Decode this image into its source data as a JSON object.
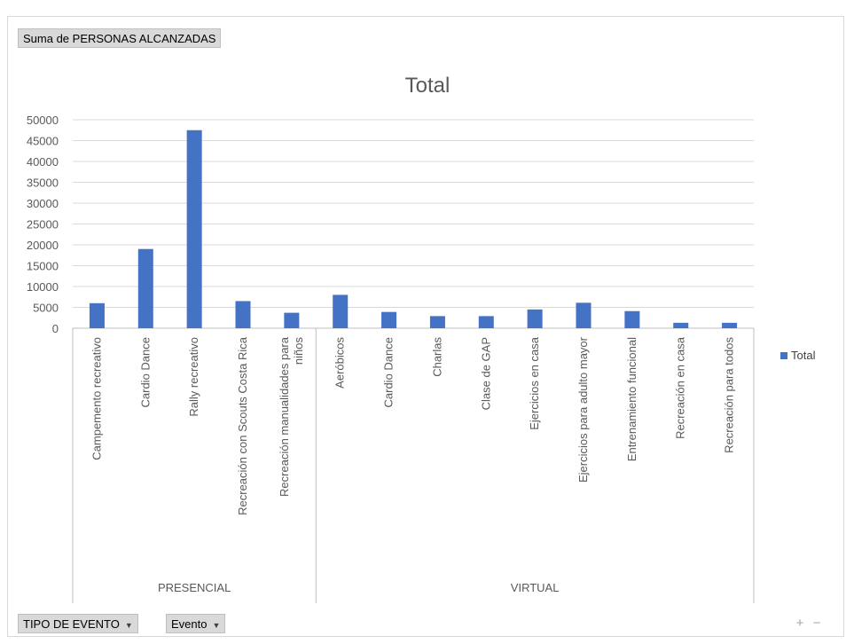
{
  "pivot": {
    "value_field": "Suma de PERSONAS ALCANZADAS",
    "filters": [
      {
        "label": "TIPO DE EVENTO",
        "arrow": "▼"
      },
      {
        "label": "Evento",
        "arrow": "▼"
      }
    ],
    "zoom_in": "+",
    "zoom_out": "−"
  },
  "colors": {
    "bar": "#4472c4",
    "grid": "#d9d9d9",
    "axis": "#bfbfbf"
  },
  "chart_data": {
    "type": "bar",
    "title": "Total",
    "xlabel": "",
    "ylabel": "",
    "ylim": [
      0,
      50000
    ],
    "yticks": [
      0,
      5000,
      10000,
      15000,
      20000,
      25000,
      30000,
      35000,
      40000,
      45000,
      50000
    ],
    "grid": true,
    "legend_position": "right",
    "groups": [
      {
        "name": "PRESENCIAL",
        "categories": [
          "Campemento recreativo",
          "Cardio Dance",
          "Rally recreativo",
          "Recreación con Scouts Costa Rica",
          "Recreación manualidades para niños"
        ],
        "values": [
          6000,
          19000,
          47500,
          6500,
          3700
        ]
      },
      {
        "name": "VIRTUAL",
        "categories": [
          "Aeróbicos",
          "Cardio Dance",
          "Charlas",
          "Clase de GAP",
          "Ejercicios en casa",
          "Ejercicios para adulto mayor",
          "Entrenamiento funcional",
          "Recreación en casa",
          "Recreación para todos"
        ],
        "values": [
          8000,
          3900,
          2900,
          2900,
          4500,
          6100,
          4100,
          1300,
          1300
        ]
      }
    ],
    "series": [
      {
        "name": "Total"
      }
    ]
  }
}
